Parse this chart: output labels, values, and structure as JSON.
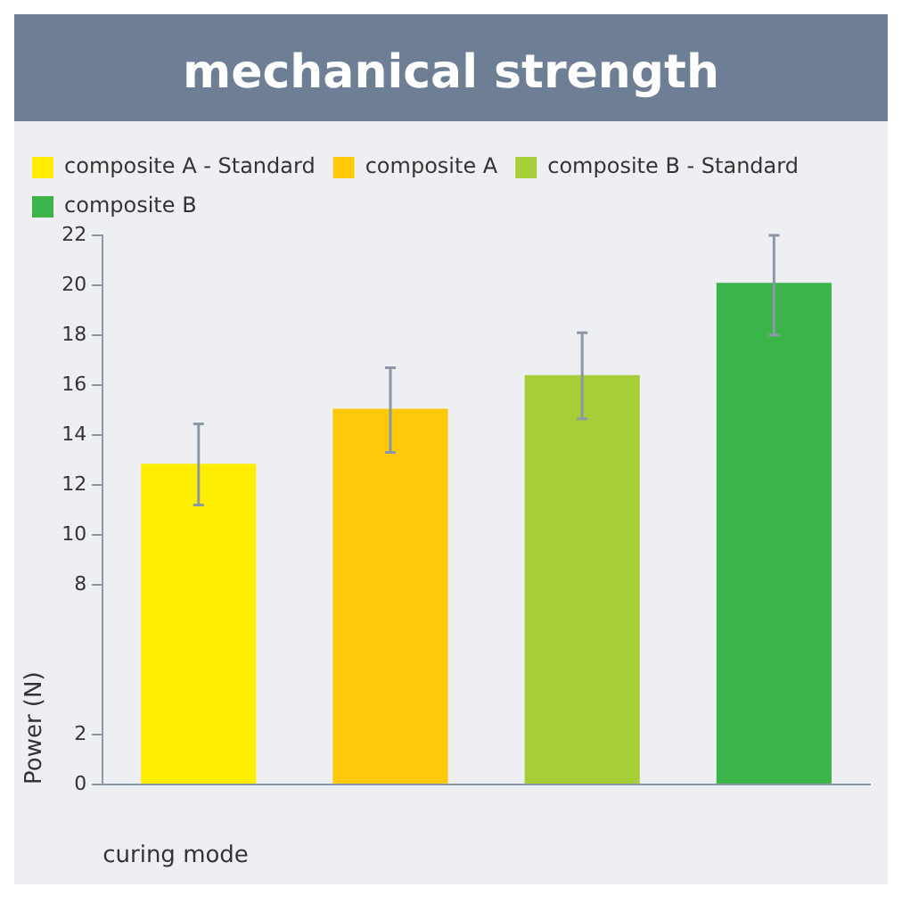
{
  "chart_data": {
    "type": "bar",
    "title": "mechanical strength",
    "xlabel": "curing mode",
    "ylabel": "Power (N)",
    "categories": [
      null,
      null,
      null,
      null
    ],
    "series": [
      {
        "name": "composite A - Standard",
        "color": "#ffed00",
        "values": [
          12.85,
          null,
          null,
          null
        ],
        "errors": [
          [
            11.2,
            14.45
          ],
          null,
          null,
          null
        ]
      },
      {
        "name": "composite A",
        "color": "#ffc90a",
        "values": [
          null,
          15.05,
          null,
          null
        ],
        "errors": [
          null,
          [
            13.3,
            16.7
          ],
          null,
          null
        ]
      },
      {
        "name": "composite B - Standard",
        "color": "#a6ce39",
        "values": [
          null,
          null,
          16.4,
          null
        ],
        "errors": [
          null,
          null,
          [
            14.65,
            18.1
          ],
          null
        ]
      },
      {
        "name": "composite B",
        "color": "#3bb44a",
        "values": [
          null,
          null,
          null,
          20.1
        ],
        "errors": [
          null,
          null,
          null,
          [
            18,
            22
          ]
        ]
      }
    ],
    "ylim": [
      0,
      22
    ],
    "yticks": [
      0,
      2,
      8,
      10,
      12,
      14,
      16,
      18,
      20,
      22
    ],
    "grid": false,
    "legend": "top left"
  }
}
